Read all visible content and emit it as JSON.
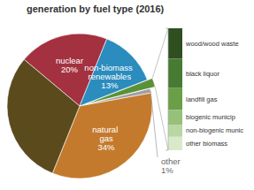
{
  "chart_data": [
    {
      "type": "pie",
      "title": "generation by fuel type (2016)",
      "categories": [
        "nuclear",
        "non-biomass renewables",
        null,
        "other",
        "natural gas",
        null
      ],
      "values": [
        20,
        13,
        2,
        1,
        34,
        30
      ],
      "value_labels": [
        "20%",
        "13%",
        null,
        "1%",
        "34%",
        null
      ],
      "colors": [
        "#a3313f",
        "#2b8cbe",
        "#5a9138",
        "#a0a0a0",
        "#c47a2c",
        "#5b4a1c"
      ],
      "data_labels": true
    },
    {
      "type": "bar",
      "stacked": true,
      "categories": [
        null
      ],
      "series": [
        {
          "name": "wood/wood waste",
          "color": "#2f4f20",
          "values": [
            25
          ]
        },
        {
          "name": "black liquor",
          "color": "#477a32",
          "values": [
            24
          ]
        },
        {
          "name": "landfill gas",
          "color": "#6a9e47",
          "values": [
            18
          ]
        },
        {
          "name": "biogenic municip",
          "color": "#97c07a",
          "values": [
            12
          ]
        },
        {
          "name": "non-biogenic munic",
          "color": "#b9d7a3",
          "values": [
            10
          ]
        },
        {
          "name": "other biomass",
          "color": "#d9eacb",
          "values": [
            11
          ]
        }
      ],
      "ylim": [
        0,
        100
      ],
      "yticks": [
        0,
        100
      ],
      "tick_labels": false
    }
  ]
}
